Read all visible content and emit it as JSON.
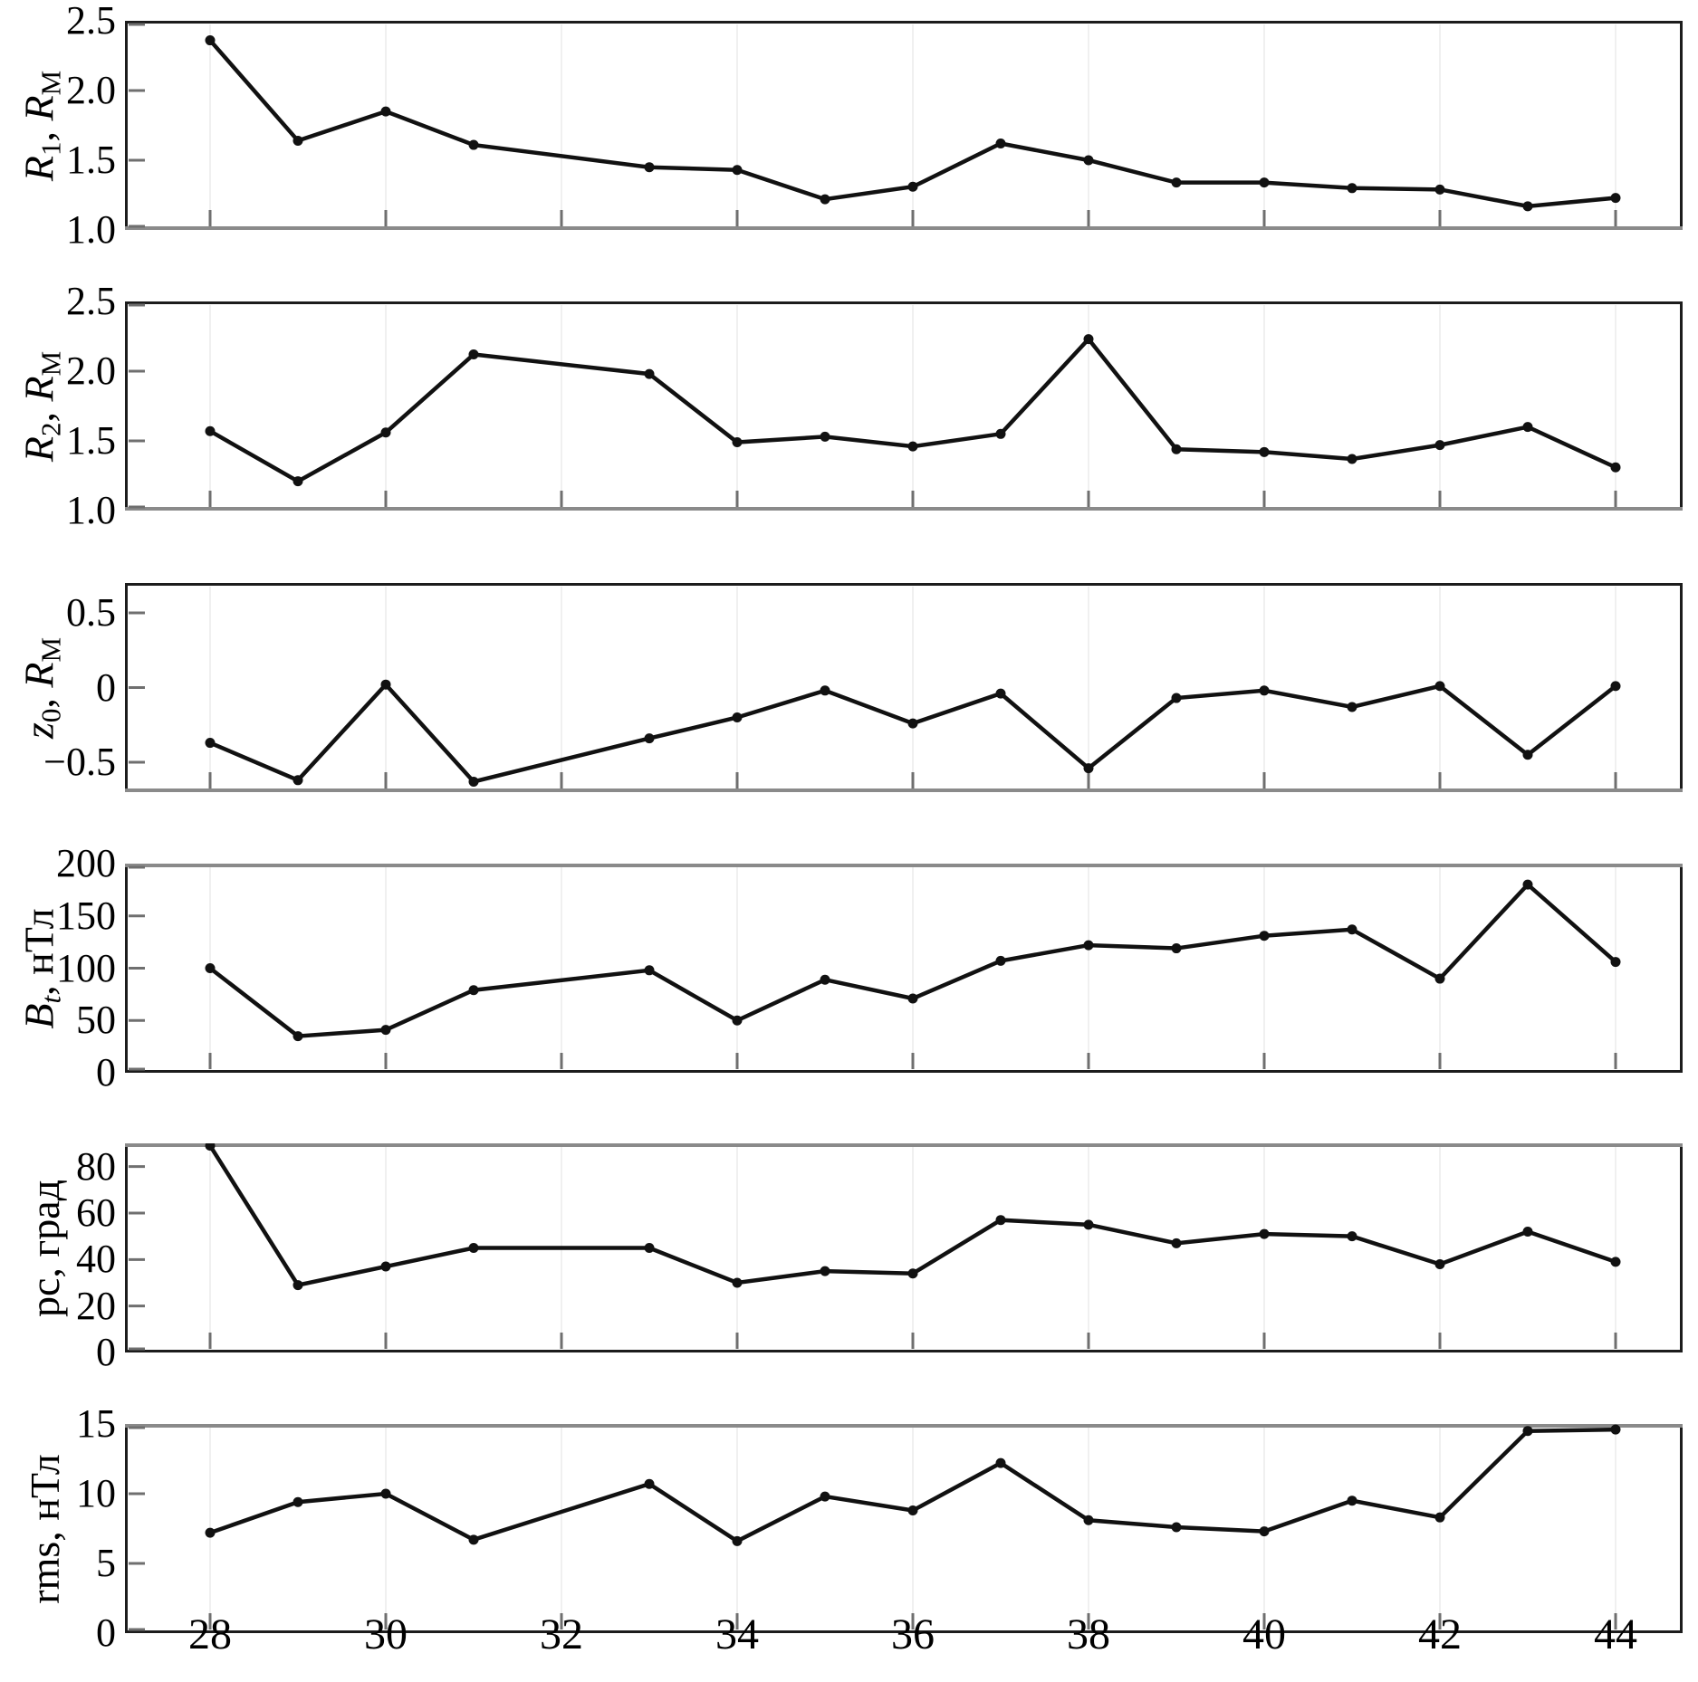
{
  "figure_title": "",
  "colors": {
    "background": "#ffffff",
    "line": "#111111",
    "marker": "#111111",
    "frame": "#1c1c1c",
    "frame_gray": "#8a8a8a",
    "tick": "#6f6f6f",
    "grid": "#f0f0f0",
    "text": "#000000"
  },
  "chart_data": {
    "type": "line",
    "title": "",
    "xlabel": "",
    "grid": "faint vertical gridlines at even x ticks",
    "legend_position": "none",
    "x": [
      28,
      29,
      30,
      31,
      33,
      34,
      35,
      36,
      37,
      38,
      39,
      40,
      41,
      42,
      43,
      44
    ],
    "xlim": [
      27.03,
      44.76
    ],
    "xticks": [
      28,
      30,
      32,
      34,
      36,
      38,
      40,
      42,
      44
    ],
    "xtick_labels": [
      "28",
      "30",
      "32",
      "34",
      "36",
      "38",
      "40",
      "42",
      "44"
    ],
    "series": [
      {
        "key": "R1",
        "ylabel": "R1, RM",
        "ylabel_segments": [
          {
            "t": "R",
            "s": "i"
          },
          {
            "t": "1",
            "s": "sub"
          },
          {
            "t": ", ",
            "s": ""
          },
          {
            "t": "R",
            "s": "i"
          },
          {
            "t": "M",
            "s": "sub"
          }
        ],
        "ylim": [
          1.0,
          2.5
        ],
        "yticks": [
          {
            "v": 2.5,
            "label": "2.5"
          },
          {
            "v": 2.0,
            "label": "2.0"
          },
          {
            "v": 1.5,
            "label": "1.5"
          },
          {
            "v": 1.0,
            "label": "1.0"
          }
        ],
        "values": [
          2.36,
          1.64,
          1.85,
          1.61,
          1.45,
          1.43,
          1.22,
          1.31,
          1.62,
          1.5,
          1.34,
          1.34,
          1.3,
          1.29,
          1.17,
          1.23
        ]
      },
      {
        "key": "R2",
        "ylabel": "R2, RM",
        "ylabel_segments": [
          {
            "t": "R",
            "s": "i"
          },
          {
            "t": "2",
            "s": "sub"
          },
          {
            "t": ", ",
            "s": ""
          },
          {
            "t": "R",
            "s": "i"
          },
          {
            "t": "M",
            "s": "sub"
          }
        ],
        "ylim": [
          1.0,
          2.5
        ],
        "yticks": [
          {
            "v": 2.5,
            "label": "2.5"
          },
          {
            "v": 2.0,
            "label": "2.0"
          },
          {
            "v": 1.5,
            "label": "1.5"
          },
          {
            "v": 1.0,
            "label": "1.0"
          }
        ],
        "values": [
          1.57,
          1.21,
          1.56,
          2.12,
          1.98,
          1.49,
          1.53,
          1.46,
          1.55,
          2.23,
          1.44,
          1.42,
          1.37,
          1.47,
          1.6,
          1.31
        ]
      },
      {
        "key": "z0",
        "ylabel": "z0, RM",
        "ylabel_segments": [
          {
            "t": "z",
            "s": "i"
          },
          {
            "t": "0",
            "s": "sub"
          },
          {
            "t": ", ",
            "s": ""
          },
          {
            "t": "R",
            "s": "i"
          },
          {
            "t": "M",
            "s": "sub"
          }
        ],
        "ylim": [
          -0.7,
          0.7
        ],
        "yticks": [
          {
            "v": 0.5,
            "label": "0.5"
          },
          {
            "v": 0.0,
            "label": "0"
          },
          {
            "v": -0.5,
            "label": "−0.5"
          }
        ],
        "values": [
          -0.37,
          -0.62,
          0.02,
          -0.63,
          -0.34,
          -0.2,
          -0.02,
          -0.24,
          -0.04,
          -0.54,
          -0.07,
          -0.02,
          -0.13,
          0.01,
          -0.45,
          0.01
        ]
      },
      {
        "key": "Bt",
        "ylabel": "Bt, нТл",
        "ylabel_segments": [
          {
            "t": "B",
            "s": "i"
          },
          {
            "t": "t",
            "s": "isub"
          },
          {
            "t": ", нТл",
            "s": ""
          }
        ],
        "ylim": [
          0,
          200
        ],
        "yticks": [
          {
            "v": 200,
            "label": "200"
          },
          {
            "v": 150,
            "label": "150"
          },
          {
            "v": 100,
            "label": "100"
          },
          {
            "v": 50,
            "label": "50"
          },
          {
            "v": 0,
            "label": "0"
          }
        ],
        "values": [
          100,
          35,
          41,
          79,
          98,
          50,
          89,
          71,
          107,
          122,
          119,
          131,
          137,
          90,
          180,
          106
        ]
      },
      {
        "key": "pc",
        "ylabel": "pc, град",
        "ylabel_segments": [
          {
            "t": "pc, град",
            "s": ""
          }
        ],
        "ylim": [
          0,
          90
        ],
        "yticks": [
          {
            "v": 80,
            "label": "80"
          },
          {
            "v": 60,
            "label": "60"
          },
          {
            "v": 40,
            "label": "40"
          },
          {
            "v": 20,
            "label": "20"
          },
          {
            "v": 0,
            "label": "0"
          }
        ],
        "values": [
          89,
          29,
          37,
          45,
          45,
          30,
          35,
          34,
          57,
          55,
          47,
          51,
          50,
          38,
          52,
          39
        ]
      },
      {
        "key": "rms",
        "ylabel": "rms, нТл",
        "ylabel_segments": [
          {
            "t": "rms, нТл",
            "s": ""
          }
        ],
        "ylim": [
          0,
          15
        ],
        "yticks": [
          {
            "v": 15,
            "label": "15"
          },
          {
            "v": 10,
            "label": "10"
          },
          {
            "v": 5,
            "label": "5"
          },
          {
            "v": 0,
            "label": "0"
          }
        ],
        "values": [
          7.2,
          9.4,
          10.0,
          6.7,
          10.7,
          6.6,
          9.8,
          8.8,
          12.2,
          8.1,
          7.6,
          7.3,
          9.5,
          8.3,
          14.5,
          14.6
        ]
      }
    ]
  }
}
